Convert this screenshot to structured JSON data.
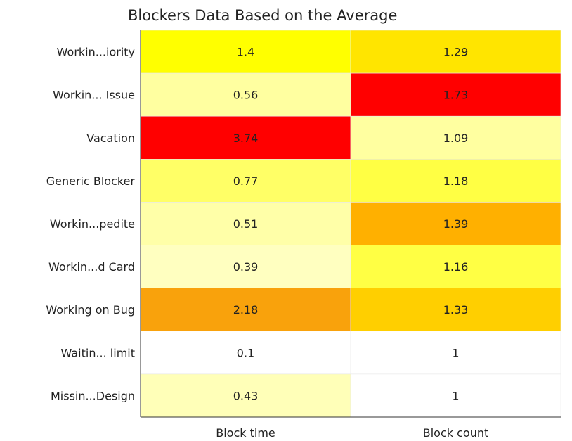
{
  "chart_data": {
    "type": "heatmap",
    "title": "Blockers Data Based on the Average",
    "columns": [
      "Block time",
      "Block count"
    ],
    "rows": [
      "Workin...iority",
      "Workin... Issue",
      "Vacation",
      "Generic Blocker",
      "Workin...pedite",
      "Workin...d Card",
      "Working on Bug",
      "Waitin... limit",
      "Missin...Design"
    ],
    "values": [
      [
        1.4,
        1.29
      ],
      [
        0.56,
        1.73
      ],
      [
        3.74,
        1.09
      ],
      [
        0.77,
        1.18
      ],
      [
        0.51,
        1.39
      ],
      [
        0.39,
        1.16
      ],
      [
        2.18,
        1.33
      ],
      [
        0.1,
        1
      ],
      [
        0.43,
        1
      ]
    ],
    "cell_colors": [
      [
        "#ffff00",
        "#ffe500"
      ],
      [
        "#ffffa0",
        "#ff0000"
      ],
      [
        "#ff0000",
        "#ffffa0"
      ],
      [
        "#ffff66",
        "#ffff44"
      ],
      [
        "#ffffa8",
        "#ffb000"
      ],
      [
        "#ffffc0",
        "#ffff44"
      ],
      [
        "#f9a20c",
        "#ffcf00"
      ],
      [
        "#ffffff",
        "#ffffff"
      ],
      [
        "#ffffb8",
        "#ffffff"
      ]
    ],
    "legend": "none",
    "grid": false
  }
}
